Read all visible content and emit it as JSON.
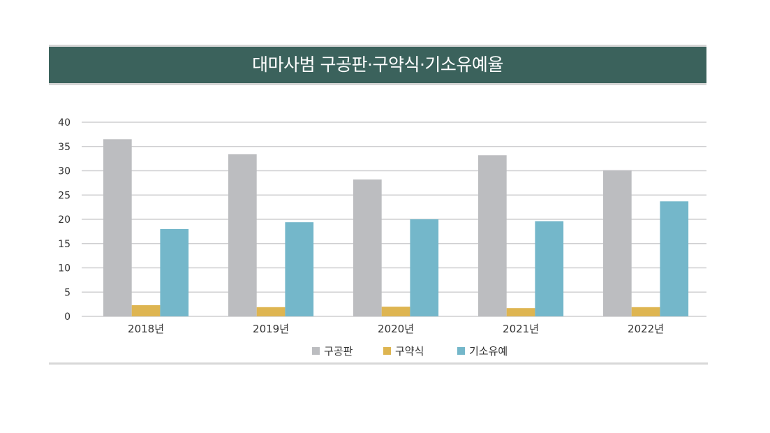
{
  "chart_data": {
    "type": "bar",
    "title": "대마사범 구공판·구약식·기소유예율",
    "xlabel": "",
    "ylabel": "",
    "categories": [
      "2018년",
      "2019년",
      "2020년",
      "2021년",
      "2022년"
    ],
    "series": [
      {
        "name": "구공판",
        "color": "#bcbdc0",
        "values": [
          36.5,
          33.4,
          28.2,
          33.2,
          30.1
        ]
      },
      {
        "name": "구약식",
        "color": "#deb551",
        "values": [
          2.3,
          1.9,
          2.0,
          1.7,
          1.9
        ]
      },
      {
        "name": "기소유예",
        "color": "#74b7ca",
        "values": [
          18.0,
          19.4,
          20.0,
          19.6,
          23.7
        ]
      }
    ],
    "ylim": [
      0,
      40
    ],
    "yticks": [
      0,
      5,
      10,
      15,
      20,
      25,
      30,
      35,
      40
    ],
    "grid": true,
    "legend": "bottom"
  }
}
